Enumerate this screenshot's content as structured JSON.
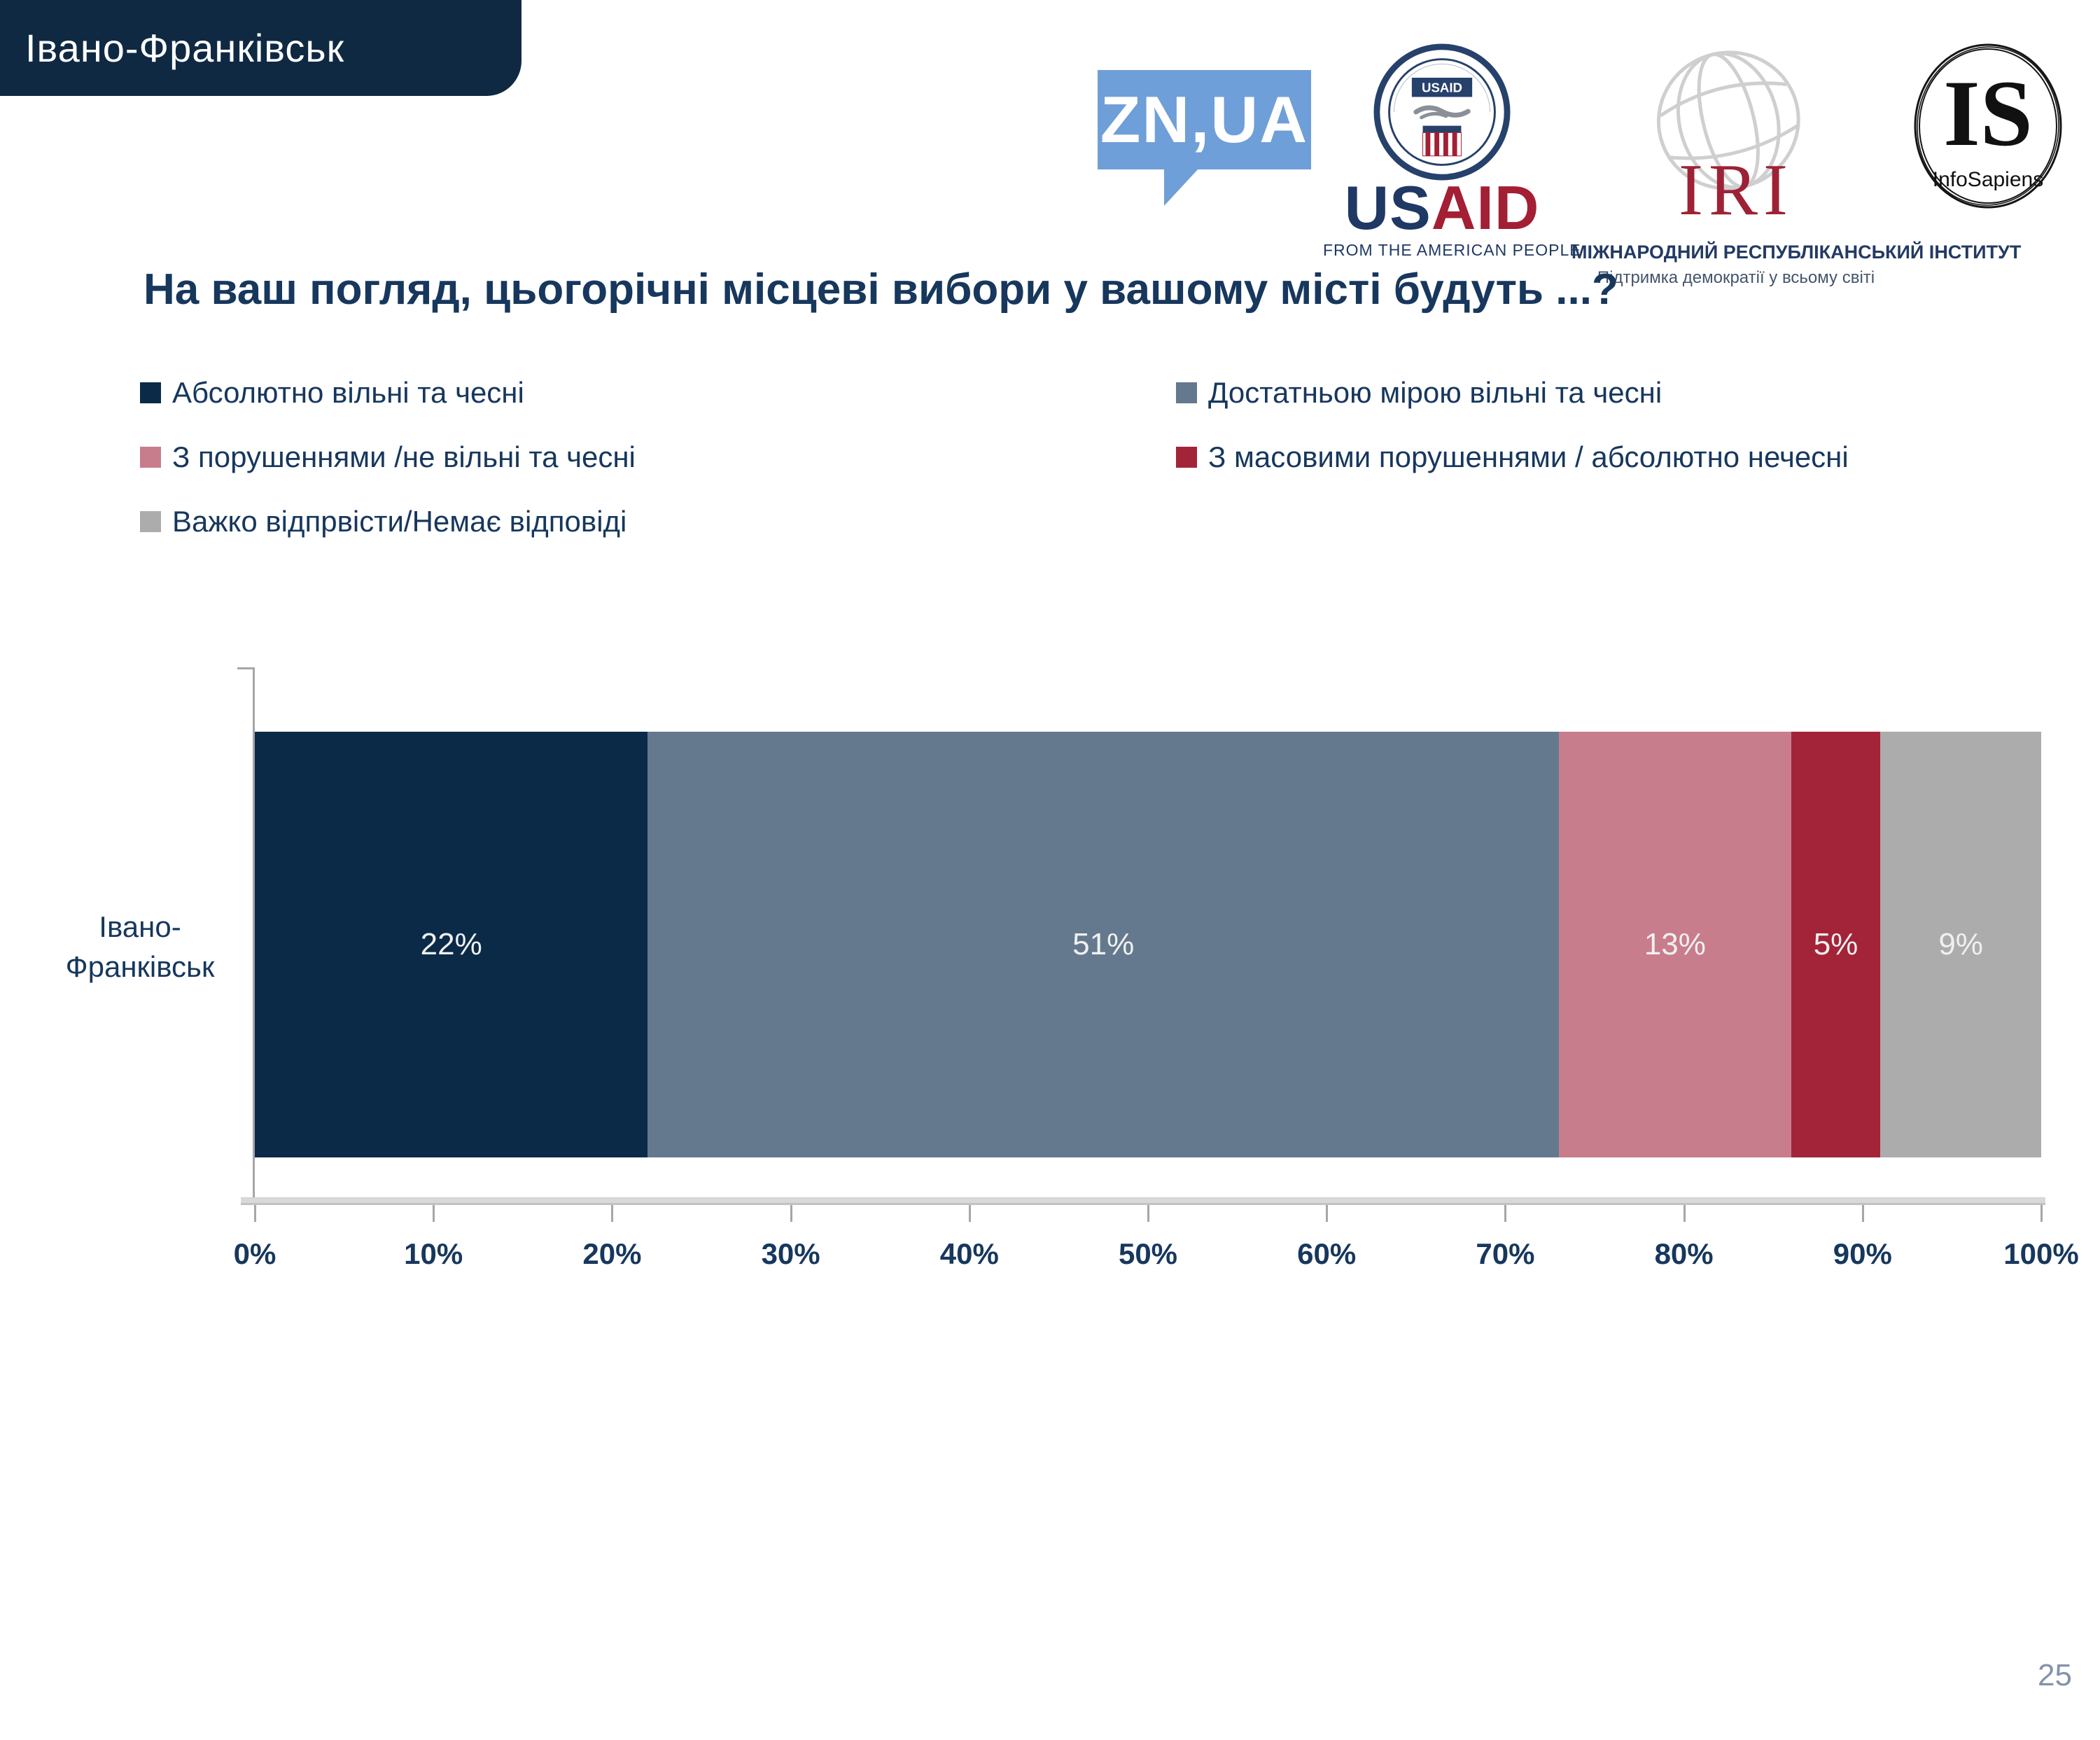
{
  "page": {
    "number": "25"
  },
  "header": {
    "tab_label": "Івано-Франківськ"
  },
  "logos": {
    "znua": {
      "text": "ZN,UA"
    },
    "usaid": {
      "seal_text": "USAID",
      "wordmark_us": "US",
      "wordmark_aid": "AID",
      "tagline": "FROM THE AMERICAN PEOPLE"
    },
    "iri": {
      "acronym": "IRI",
      "line1": "МІЖНАРОДНИЙ РЕСПУБЛІКАНСЬКИЙ ІНСТИТУТ",
      "line2": "Підтримка демократії у всьому світі"
    },
    "infosapiens": {
      "acronym": "IS",
      "name": "InfoSapiens"
    }
  },
  "title": "На ваш погляд, цьогорічні місцеві вибори у вашому місті будуть ...?",
  "legend": [
    {
      "label": "Абсолютно вільні та чесні",
      "color": "#0b2a48"
    },
    {
      "label": "Достатньою мірою вільні та чесні",
      "color": "#65798e"
    },
    {
      "label": "З порушеннями /не вільні та чесні",
      "color": "#c87d8c"
    },
    {
      "label": "З масовими порушеннями / абсолютно нечесні",
      "color": "#a32438"
    },
    {
      "label": "Важко відпрвісти/Немає відповіді",
      "color": "#acacac"
    }
  ],
  "chart_data": {
    "type": "bar",
    "orientation": "horizontal-stacked",
    "title": "",
    "categories": [
      "Івано-Франківськ"
    ],
    "category_label_lines": [
      "Івано-",
      "Франківськ"
    ],
    "series": [
      {
        "name": "Абсолютно вільні та чесні",
        "values": [
          22
        ],
        "color": "#0b2a48"
      },
      {
        "name": "Достатньою мірою вільні та чесні",
        "values": [
          51
        ],
        "color": "#65798e"
      },
      {
        "name": "З порушеннями /не вільні та чесні",
        "values": [
          13
        ],
        "color": "#c87d8c"
      },
      {
        "name": "З масовими порушеннями / абсолютно нечесні",
        "values": [
          5
        ],
        "color": "#a32438"
      },
      {
        "name": "Важко відпрвісти/Немає відповіді",
        "values": [
          9
        ],
        "color": "#acacac"
      }
    ],
    "data_labels": [
      "22%",
      "51%",
      "13%",
      "5%",
      "9%"
    ],
    "x_axis": {
      "min": 0,
      "max": 100,
      "ticks": [
        "0%",
        "10%",
        "20%",
        "30%",
        "40%",
        "50%",
        "60%",
        "70%",
        "80%",
        "90%",
        "100%"
      ]
    },
    "legend_position": "top",
    "grid": "off"
  }
}
